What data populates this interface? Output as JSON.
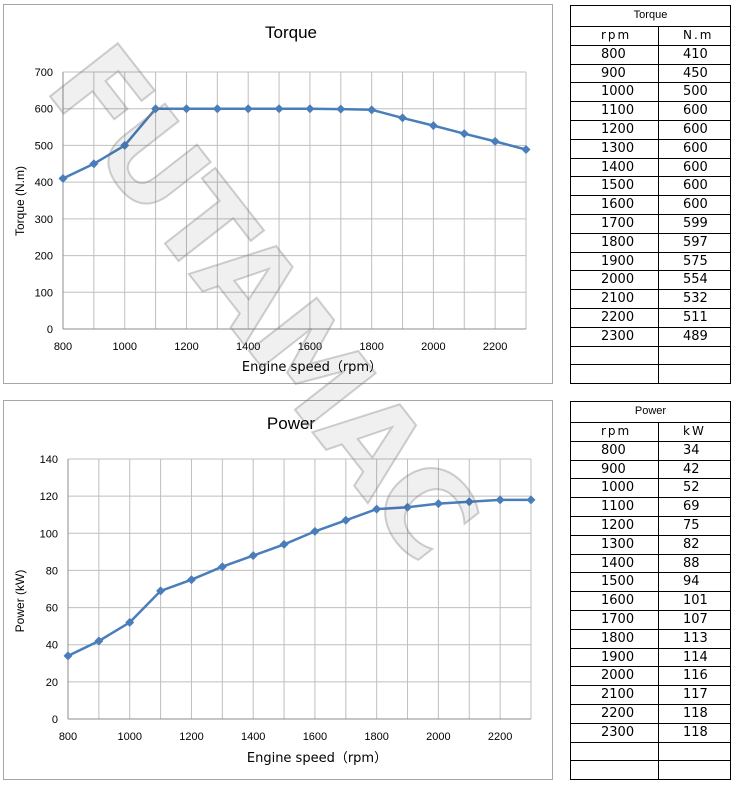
{
  "chart_data": [
    {
      "type": "line",
      "title": "Torque",
      "xlabel": "Engine speed（rpm）",
      "ylabel": "Torque (N.m)",
      "xlim": [
        800,
        2300
      ],
      "ylim": [
        0,
        700
      ],
      "xticks": [
        "800",
        "1000",
        "1200",
        "1400",
        "1600",
        "1800",
        "2000",
        "2200"
      ],
      "yticks": [
        "0",
        "100",
        "200",
        "300",
        "400",
        "500",
        "600",
        "700"
      ],
      "grid": true,
      "series": [
        {
          "x": [
            800,
            900,
            1000,
            1100,
            1200,
            1300,
            1400,
            1500,
            1600,
            1700,
            1800,
            1900,
            2000,
            2100,
            2200,
            2300
          ],
          "values": [
            410,
            450,
            500,
            600,
            600,
            600,
            600,
            600,
            600,
            599,
            597,
            575,
            554,
            532,
            511,
            489
          ],
          "color": "#4a7ebb"
        }
      ]
    },
    {
      "type": "line",
      "title": "Power",
      "xlabel": "Engine speed（rpm）",
      "ylabel": "Power (kW)",
      "xlim": [
        800,
        2300
      ],
      "ylim": [
        0,
        140
      ],
      "xticks": [
        "800",
        "1000",
        "1200",
        "1400",
        "1600",
        "1800",
        "2000",
        "2200"
      ],
      "yticks": [
        "0",
        "20",
        "40",
        "60",
        "80",
        "100",
        "120",
        "140"
      ],
      "grid": true,
      "series": [
        {
          "x": [
            800,
            900,
            1000,
            1100,
            1200,
            1300,
            1400,
            1500,
            1600,
            1700,
            1800,
            1900,
            2000,
            2100,
            2200,
            2300
          ],
          "values": [
            34,
            42,
            52,
            69,
            75,
            82,
            88,
            94,
            101,
            107,
            113,
            114,
            116,
            117,
            118,
            118
          ],
          "color": "#4a7ebb"
        }
      ]
    }
  ],
  "tables": {
    "torque": {
      "title": "Torque",
      "headers": [
        "rpm",
        "N.m"
      ],
      "rows": [
        [
          "800",
          "410"
        ],
        [
          "900",
          "450"
        ],
        [
          "1000",
          "500"
        ],
        [
          "1100",
          "600"
        ],
        [
          "1200",
          "600"
        ],
        [
          "1300",
          "600"
        ],
        [
          "1400",
          "600"
        ],
        [
          "1500",
          "600"
        ],
        [
          "1600",
          "600"
        ],
        [
          "1700",
          "599"
        ],
        [
          "1800",
          "597"
        ],
        [
          "1900",
          "575"
        ],
        [
          "2000",
          "554"
        ],
        [
          "2100",
          "532"
        ],
        [
          "2200",
          "511"
        ],
        [
          "2300",
          "489"
        ]
      ]
    },
    "power": {
      "title": "Power",
      "headers": [
        "rpm",
        "kW"
      ],
      "rows": [
        [
          "800",
          "34"
        ],
        [
          "900",
          "42"
        ],
        [
          "1000",
          "52"
        ],
        [
          "1100",
          "69"
        ],
        [
          "1200",
          "75"
        ],
        [
          "1300",
          "82"
        ],
        [
          "1400",
          "88"
        ],
        [
          "1500",
          "94"
        ],
        [
          "1600",
          "101"
        ],
        [
          "1700",
          "107"
        ],
        [
          "1800",
          "113"
        ],
        [
          "1900",
          "114"
        ],
        [
          "2000",
          "116"
        ],
        [
          "2100",
          "117"
        ],
        [
          "2200",
          "118"
        ],
        [
          "2300",
          "118"
        ]
      ]
    }
  },
  "watermark": {
    "text": "FUTAMAC"
  }
}
